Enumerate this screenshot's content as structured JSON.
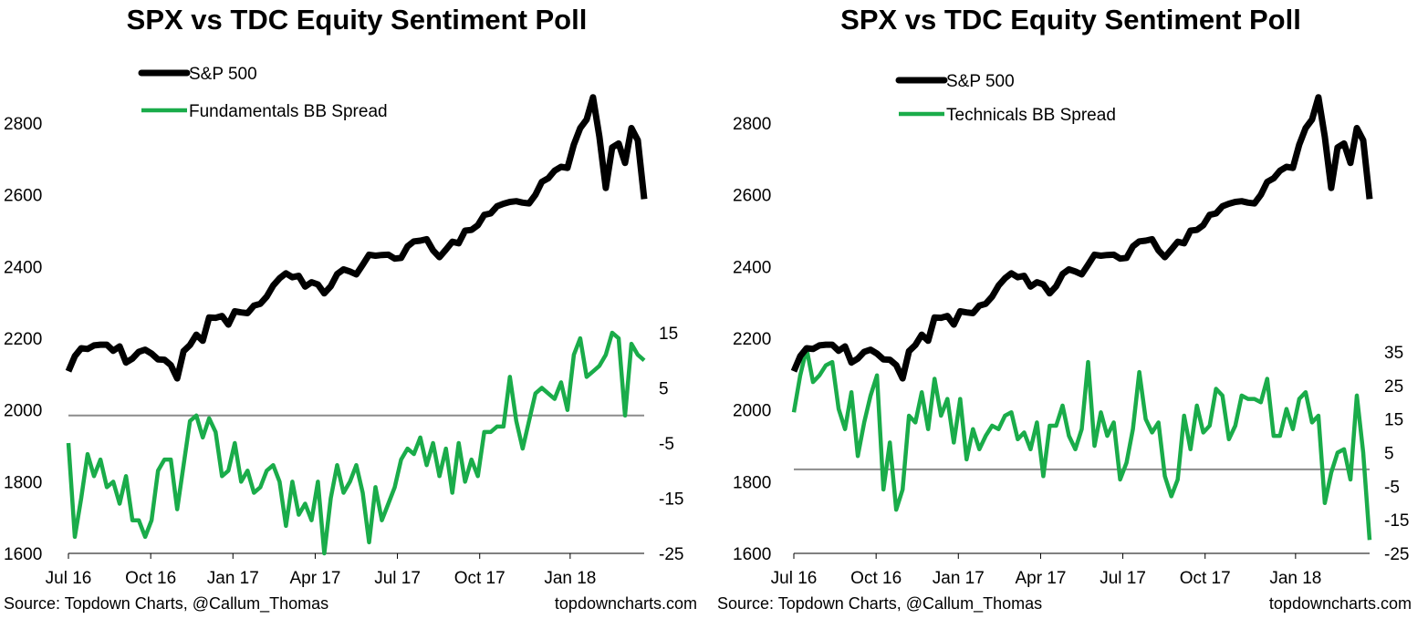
{
  "colors": {
    "spx": "#000000",
    "spread": "#1aac4a",
    "zero_line": "#8c8c8c"
  },
  "chart_data": [
    {
      "type": "line",
      "title": "SPX vs TDC Equity Sentiment Poll",
      "source": "Source: Topdown Charts, @Callum_Thomas",
      "site": "topdowncharts.com",
      "x_ticks": [
        "Jul 16",
        "Oct 16",
        "Jan 17",
        "Apr 17",
        "Jul 17",
        "Oct 17",
        "Jan 18"
      ],
      "y_left": {
        "ticks": [
          "1600",
          "1800",
          "2000",
          "2200",
          "2400",
          "2600",
          "2800"
        ],
        "ylim": [
          1600,
          2900
        ]
      },
      "y_right": {
        "ticks": [
          "-25",
          "-15",
          "-5",
          "5",
          "15"
        ],
        "ylim": [
          -25,
          20
        ]
      },
      "grid": false,
      "legend_position": "top-left",
      "series": [
        {
          "name": "S&P 500",
          "axis": "left",
          "values": [
            2108,
            2150,
            2172,
            2170,
            2180,
            2182,
            2182,
            2165,
            2177,
            2132,
            2143,
            2162,
            2168,
            2157,
            2141,
            2140,
            2125,
            2088,
            2164,
            2181,
            2210,
            2193,
            2258,
            2257,
            2262,
            2238,
            2275,
            2272,
            2270,
            2291,
            2296,
            2316,
            2347,
            2367,
            2381,
            2370,
            2374,
            2344,
            2356,
            2350,
            2325,
            2345,
            2379,
            2392,
            2386,
            2378,
            2405,
            2433,
            2430,
            2432,
            2433,
            2422,
            2424,
            2456,
            2470,
            2472,
            2476,
            2445,
            2426,
            2447,
            2469,
            2465,
            2500,
            2502,
            2515,
            2544,
            2548,
            2568,
            2575,
            2580,
            2582,
            2578,
            2576,
            2600,
            2636,
            2646,
            2667,
            2678,
            2675,
            2740,
            2786,
            2810,
            2872,
            2762,
            2619,
            2732,
            2743,
            2689,
            2786,
            2752,
            2588
          ]
        },
        {
          "name": "Fundamentals BB Spread",
          "axis": "right",
          "values": [
            -5,
            -22,
            -15,
            -7,
            -11,
            -8,
            -13,
            -12,
            -16,
            -11,
            -19,
            -19,
            -22,
            -19,
            -10,
            -8,
            -8,
            -17,
            -9,
            -1,
            0,
            -4,
            -0.5,
            -3,
            -11,
            -10,
            -5,
            -12,
            -10,
            -14,
            -13,
            -10,
            -9,
            -12,
            -20,
            -12,
            -18,
            -16,
            -19,
            -12,
            -25,
            -15,
            -9,
            -14,
            -12,
            -9,
            -14,
            -23,
            -13,
            -19,
            -16,
            -13,
            -8,
            -6,
            -7,
            -4,
            -9,
            -5,
            -11,
            -6,
            -14,
            -5,
            -12,
            -8,
            -11,
            -3,
            -3,
            -2,
            -2,
            7,
            -1,
            -6,
            -1,
            4,
            5,
            4,
            3,
            6,
            1,
            11,
            14,
            7,
            8,
            9,
            11,
            15,
            14,
            0,
            13,
            11,
            10
          ]
        },
        {
          "name": "S&P 500",
          "axis": "left",
          "values": [
            2108,
            2150,
            2172,
            2170,
            2180,
            2182,
            2182,
            2165,
            2177,
            2132,
            2143,
            2162,
            2168,
            2157,
            2141,
            2140,
            2125,
            2088,
            2164,
            2181,
            2210,
            2193,
            2258,
            2257,
            2262,
            2238,
            2275,
            2272,
            2270,
            2291,
            2296,
            2316,
            2347,
            2367,
            2381,
            2370,
            2374,
            2344,
            2356,
            2350,
            2325,
            2345,
            2379,
            2392,
            2386,
            2378,
            2405,
            2433,
            2430,
            2432,
            2433,
            2422,
            2424,
            2456,
            2470,
            2472,
            2476,
            2445,
            2426,
            2447,
            2469,
            2465,
            2500,
            2502,
            2515,
            2544,
            2548,
            2568,
            2575,
            2580,
            2582,
            2578,
            2576,
            2600,
            2636,
            2646,
            2667,
            2678,
            2675,
            2740,
            2786,
            2810,
            2872,
            2762,
            2619,
            2732,
            2743,
            2689,
            2786,
            2752,
            2588
          ]
        }
      ]
    },
    {
      "type": "line",
      "title": "SPX vs TDC Equity Sentiment Poll",
      "source": "Source: Topdown Charts, @Callum_Thomas",
      "site": "topdowncharts.com",
      "x_ticks": [
        "Jul 16",
        "Oct 16",
        "Jan 17",
        "Apr 17",
        "Jul 17",
        "Oct 17",
        "Jan 18"
      ],
      "y_left": {
        "ticks": [
          "1600",
          "1800",
          "2000",
          "2200",
          "2400",
          "2600",
          "2800"
        ],
        "ylim": [
          1600,
          2900
        ]
      },
      "y_right": {
        "ticks": [
          "-25",
          "-15",
          "-5",
          "5",
          "15",
          "25",
          "35"
        ],
        "ylim": [
          -25,
          46
        ]
      },
      "grid": false,
      "legend_position": "top-left",
      "series": [
        {
          "name": "S&P 500",
          "axis": "left",
          "values": [
            2108,
            2150,
            2172,
            2170,
            2180,
            2182,
            2182,
            2165,
            2177,
            2132,
            2143,
            2162,
            2168,
            2157,
            2141,
            2140,
            2125,
            2088,
            2164,
            2181,
            2210,
            2193,
            2258,
            2257,
            2262,
            2238,
            2275,
            2272,
            2270,
            2291,
            2296,
            2316,
            2347,
            2367,
            2381,
            2370,
            2374,
            2344,
            2356,
            2350,
            2325,
            2345,
            2379,
            2392,
            2386,
            2378,
            2405,
            2433,
            2430,
            2432,
            2433,
            2422,
            2424,
            2456,
            2470,
            2472,
            2476,
            2445,
            2426,
            2447,
            2469,
            2465,
            2500,
            2502,
            2515,
            2544,
            2548,
            2568,
            2575,
            2580,
            2582,
            2578,
            2576,
            2600,
            2636,
            2646,
            2667,
            2678,
            2675,
            2740,
            2786,
            2810,
            2872,
            2762,
            2619,
            2732,
            2743,
            2689,
            2786,
            2752,
            2588
          ]
        },
        {
          "name": "Technicals BB Spread",
          "axis": "right",
          "values": [
            17,
            28,
            36,
            26,
            28,
            31,
            32,
            18,
            12,
            23,
            4,
            14,
            22,
            28,
            -6,
            8,
            -12,
            -6,
            16,
            14,
            23,
            12,
            27,
            16,
            21,
            8,
            21,
            3,
            12,
            6,
            10,
            13,
            12,
            16,
            17,
            9,
            11,
            6,
            14,
            -2,
            13,
            13,
            19,
            10,
            6,
            12,
            32,
            7,
            17,
            10,
            14,
            -3,
            2,
            12,
            29,
            15,
            11,
            14,
            -2,
            -8,
            -3,
            16,
            6,
            19,
            11,
            13,
            24,
            22,
            9,
            13,
            22,
            21,
            21,
            20,
            27,
            10,
            10,
            18,
            12,
            21,
            23,
            14,
            16,
            -10,
            -1,
            5,
            6,
            -3,
            22,
            5,
            -21
          ]
        }
      ]
    }
  ]
}
